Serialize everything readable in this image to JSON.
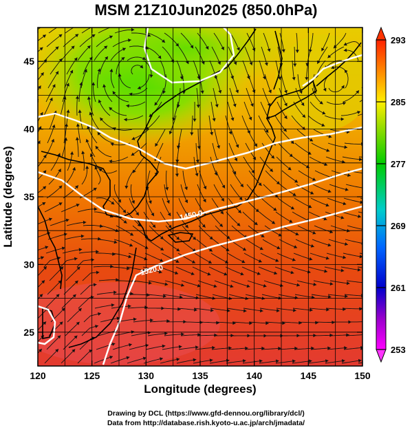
{
  "title": "MSM 21Z10Jun2025 (850.0hPa)",
  "xlabel": "Longitude (degrees)",
  "ylabel": "Latitude  (degrees)",
  "credits": [
    "Drawing by DCL (https://www.gfd-dennou.org/library/dcl/)",
    "Data from http://database.rish.kyoto-u.ac.jp/arch/jmadata/"
  ],
  "chart_data": {
    "type": "heatmap",
    "title": "MSM 21Z10Jun2025 (850.0hPa)",
    "xlabel": "Longitude (degrees)",
    "ylabel": "Latitude  (degrees)",
    "xlim": [
      120,
      150
    ],
    "ylim": [
      22.5,
      47.5
    ],
    "xticks": [
      120,
      125,
      130,
      135,
      140,
      145,
      150
    ],
    "yticks": [
      25,
      30,
      35,
      40,
      45
    ],
    "colorbar": {
      "min": 253,
      "max": 293,
      "ticks": [
        253,
        261,
        269,
        277,
        285,
        293
      ]
    },
    "contours": [
      {
        "label": "1520.0"
      },
      {
        "label": "1450.0"
      }
    ]
  }
}
